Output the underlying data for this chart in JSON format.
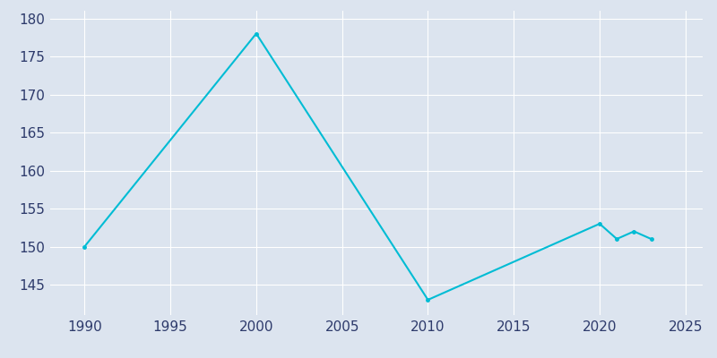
{
  "years": [
    1990,
    2000,
    2010,
    2020,
    2021,
    2022,
    2023
  ],
  "population": [
    150,
    178,
    143,
    153,
    151,
    152,
    151
  ],
  "line_color": "#00bcd4",
  "background_color": "#dce4ef",
  "grid_color": "#ffffff",
  "text_color": "#2d3a6b",
  "xlim": [
    1988,
    2026
  ],
  "ylim": [
    141,
    181
  ],
  "xticks": [
    1990,
    1995,
    2000,
    2005,
    2010,
    2015,
    2020,
    2025
  ],
  "yticks": [
    145,
    150,
    155,
    160,
    165,
    170,
    175,
    180
  ]
}
